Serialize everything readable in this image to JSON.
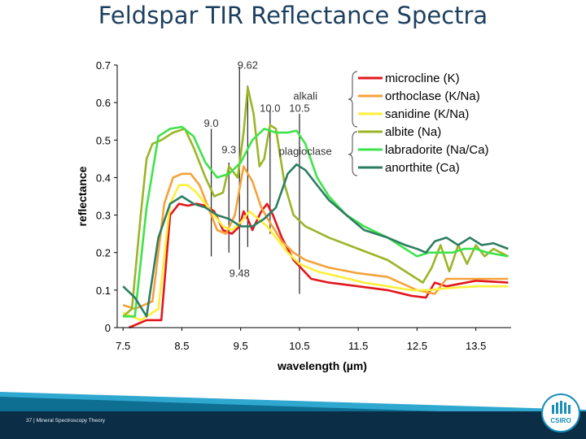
{
  "slide": {
    "title": "Feldspar TIR Reflectance Spectra",
    "footer_page": "37",
    "footer_separator": "|",
    "footer_text": "Mineral Spectroscopy Theory",
    "logo_text": "CSIRO",
    "logo_icon": "csiro-logo-icon",
    "footer_colors": [
      "#2fa8d0",
      "#0e6f93",
      "#0b2d45"
    ]
  },
  "chart_data": {
    "type": "line",
    "xlabel": "wavelength (µm)",
    "ylabel": "reflectance",
    "xlim": [
      7.4,
      14.1
    ],
    "ylim": [
      0,
      0.7
    ],
    "xticks": [
      7.5,
      8.5,
      9.5,
      10.5,
      11.5,
      12.5,
      13.5
    ],
    "xtick_labels": [
      "7.5",
      "8.5",
      "9.5",
      "10.5",
      "11.5",
      "12.5",
      "13.5"
    ],
    "yticks": [
      0,
      0.1,
      0.2,
      0.3,
      0.4,
      0.5,
      0.6,
      0.7
    ],
    "ytick_labels": [
      "0",
      "0.1",
      "0.2",
      "0.3",
      "0.4",
      "0.5",
      "0.6",
      "0.7"
    ],
    "grid": false,
    "legend_position": "top-right",
    "annotations": [
      {
        "text": "9.62",
        "x": 9.62,
        "y": 0.69
      },
      {
        "text": "9.0",
        "x": 9.0,
        "y": 0.535
      },
      {
        "text": "9.3",
        "x": 9.3,
        "y": 0.465
      },
      {
        "text": "10.0",
        "x": 10.0,
        "y": 0.575
      },
      {
        "text": "10.5",
        "x": 10.5,
        "y": 0.575
      },
      {
        "text": "9.48",
        "x": 9.48,
        "y": 0.135
      }
    ],
    "group_labels": [
      {
        "text": "alkali",
        "x": 10.6,
        "y": 0.608
      },
      {
        "text": "plagioclase",
        "x": 10.6,
        "y": 0.46
      }
    ],
    "reference_lines": [
      {
        "x": 9.0,
        "y_from": 0.19,
        "y_to": 0.53
      },
      {
        "x": 9.3,
        "y_from": 0.2,
        "y_to": 0.44
      },
      {
        "x": 9.48,
        "y_from": 0.155,
        "y_to": 0.695
      },
      {
        "x": 9.62,
        "y_from": 0.215,
        "y_to": 0.645
      },
      {
        "x": 10.0,
        "y_from": 0.25,
        "y_to": 0.58
      },
      {
        "x": 10.5,
        "y_from": 0.09,
        "y_to": 0.57
      }
    ],
    "series": [
      {
        "name": "microcline (K)",
        "color": "#e3171c",
        "x": [
          7.6,
          7.9,
          8.15,
          8.3,
          8.45,
          8.6,
          8.75,
          8.9,
          9.05,
          9.2,
          9.35,
          9.48,
          9.55,
          9.62,
          9.7,
          9.85,
          9.95,
          10.05,
          10.2,
          10.4,
          10.7,
          11.0,
          11.5,
          12.0,
          12.4,
          12.65,
          12.8,
          13.0,
          13.5,
          14.05
        ],
        "y": [
          0.0,
          0.02,
          0.02,
          0.3,
          0.33,
          0.325,
          0.33,
          0.325,
          0.31,
          0.26,
          0.25,
          0.27,
          0.31,
          0.29,
          0.26,
          0.31,
          0.33,
          0.3,
          0.24,
          0.18,
          0.13,
          0.12,
          0.11,
          0.1,
          0.085,
          0.08,
          0.12,
          0.11,
          0.125,
          0.12
        ]
      },
      {
        "name": "orthoclase (K/Na)",
        "color": "#f4a23a",
        "x": [
          7.5,
          7.7,
          8.0,
          8.2,
          8.35,
          8.5,
          8.65,
          8.8,
          8.95,
          9.1,
          9.25,
          9.4,
          9.55,
          9.7,
          9.85,
          10.0,
          10.2,
          10.4,
          10.6,
          11.0,
          11.5,
          12.0,
          12.5,
          12.8,
          13.0,
          13.5,
          14.05
        ],
        "y": [
          0.06,
          0.05,
          0.07,
          0.33,
          0.4,
          0.41,
          0.41,
          0.38,
          0.32,
          0.26,
          0.25,
          0.3,
          0.43,
          0.39,
          0.32,
          0.28,
          0.23,
          0.2,
          0.18,
          0.16,
          0.145,
          0.135,
          0.1,
          0.09,
          0.13,
          0.13,
          0.13
        ]
      },
      {
        "name": "sanidine (K/Na)",
        "color": "#ffef3a",
        "x": [
          7.5,
          7.8,
          8.1,
          8.3,
          8.45,
          8.6,
          8.75,
          8.9,
          9.05,
          9.2,
          9.35,
          9.5,
          9.65,
          9.8,
          9.95,
          10.1,
          10.3,
          10.5,
          10.8,
          11.2,
          11.6,
          12.0,
          12.4,
          12.7,
          13.0,
          13.5,
          14.05
        ],
        "y": [
          0.04,
          0.02,
          0.05,
          0.33,
          0.38,
          0.38,
          0.36,
          0.33,
          0.3,
          0.27,
          0.26,
          0.28,
          0.31,
          0.29,
          0.27,
          0.24,
          0.2,
          0.17,
          0.15,
          0.135,
          0.12,
          0.11,
          0.1,
          0.1,
          0.105,
          0.11,
          0.11
        ]
      },
      {
        "name": "albite (Na)",
        "color": "#9bb527",
        "x": [
          7.5,
          7.65,
          7.8,
          7.9,
          8.0,
          8.15,
          8.35,
          8.55,
          8.7,
          8.9,
          9.05,
          9.2,
          9.3,
          9.45,
          9.55,
          9.62,
          9.72,
          9.82,
          9.9,
          10.0,
          10.1,
          10.25,
          10.4,
          10.6,
          11.0,
          11.5,
          12.0,
          12.4,
          12.6,
          12.75,
          12.9,
          13.05,
          13.2,
          13.35,
          13.5,
          13.65,
          13.8,
          14.05
        ],
        "y": [
          0.03,
          0.05,
          0.3,
          0.45,
          0.49,
          0.5,
          0.52,
          0.53,
          0.48,
          0.4,
          0.35,
          0.36,
          0.43,
          0.4,
          0.52,
          0.64,
          0.57,
          0.43,
          0.45,
          0.54,
          0.53,
          0.38,
          0.3,
          0.27,
          0.24,
          0.21,
          0.18,
          0.14,
          0.12,
          0.16,
          0.22,
          0.15,
          0.22,
          0.17,
          0.22,
          0.19,
          0.21,
          0.19
        ]
      },
      {
        "name": "labradorite (Na/Ca)",
        "color": "#3ee34b",
        "x": [
          7.5,
          7.7,
          7.9,
          8.1,
          8.3,
          8.5,
          8.7,
          8.9,
          9.1,
          9.3,
          9.5,
          9.7,
          9.9,
          10.1,
          10.3,
          10.45,
          10.6,
          10.8,
          11.0,
          11.3,
          11.6,
          12.0,
          12.3,
          12.5,
          12.7,
          12.9,
          13.1,
          13.3,
          13.5,
          13.7,
          14.05
        ],
        "y": [
          0.03,
          0.03,
          0.32,
          0.51,
          0.53,
          0.535,
          0.51,
          0.44,
          0.4,
          0.41,
          0.44,
          0.5,
          0.53,
          0.52,
          0.52,
          0.525,
          0.49,
          0.4,
          0.35,
          0.3,
          0.27,
          0.24,
          0.21,
          0.19,
          0.2,
          0.2,
          0.2,
          0.21,
          0.21,
          0.2,
          0.19
        ]
      },
      {
        "name": "anorthite (Ca)",
        "color": "#2e7d62",
        "x": [
          7.5,
          7.7,
          7.9,
          8.1,
          8.3,
          8.5,
          8.7,
          8.9,
          9.1,
          9.3,
          9.5,
          9.7,
          9.9,
          10.1,
          10.3,
          10.45,
          10.6,
          10.8,
          11.0,
          11.3,
          11.6,
          12.0,
          12.3,
          12.5,
          12.65,
          12.8,
          13.0,
          13.2,
          13.4,
          13.6,
          13.8,
          14.05
        ],
        "y": [
          0.11,
          0.08,
          0.03,
          0.24,
          0.33,
          0.35,
          0.33,
          0.32,
          0.3,
          0.29,
          0.27,
          0.27,
          0.29,
          0.32,
          0.41,
          0.435,
          0.42,
          0.38,
          0.34,
          0.3,
          0.26,
          0.24,
          0.22,
          0.21,
          0.2,
          0.23,
          0.24,
          0.22,
          0.24,
          0.22,
          0.225,
          0.21
        ]
      }
    ]
  }
}
